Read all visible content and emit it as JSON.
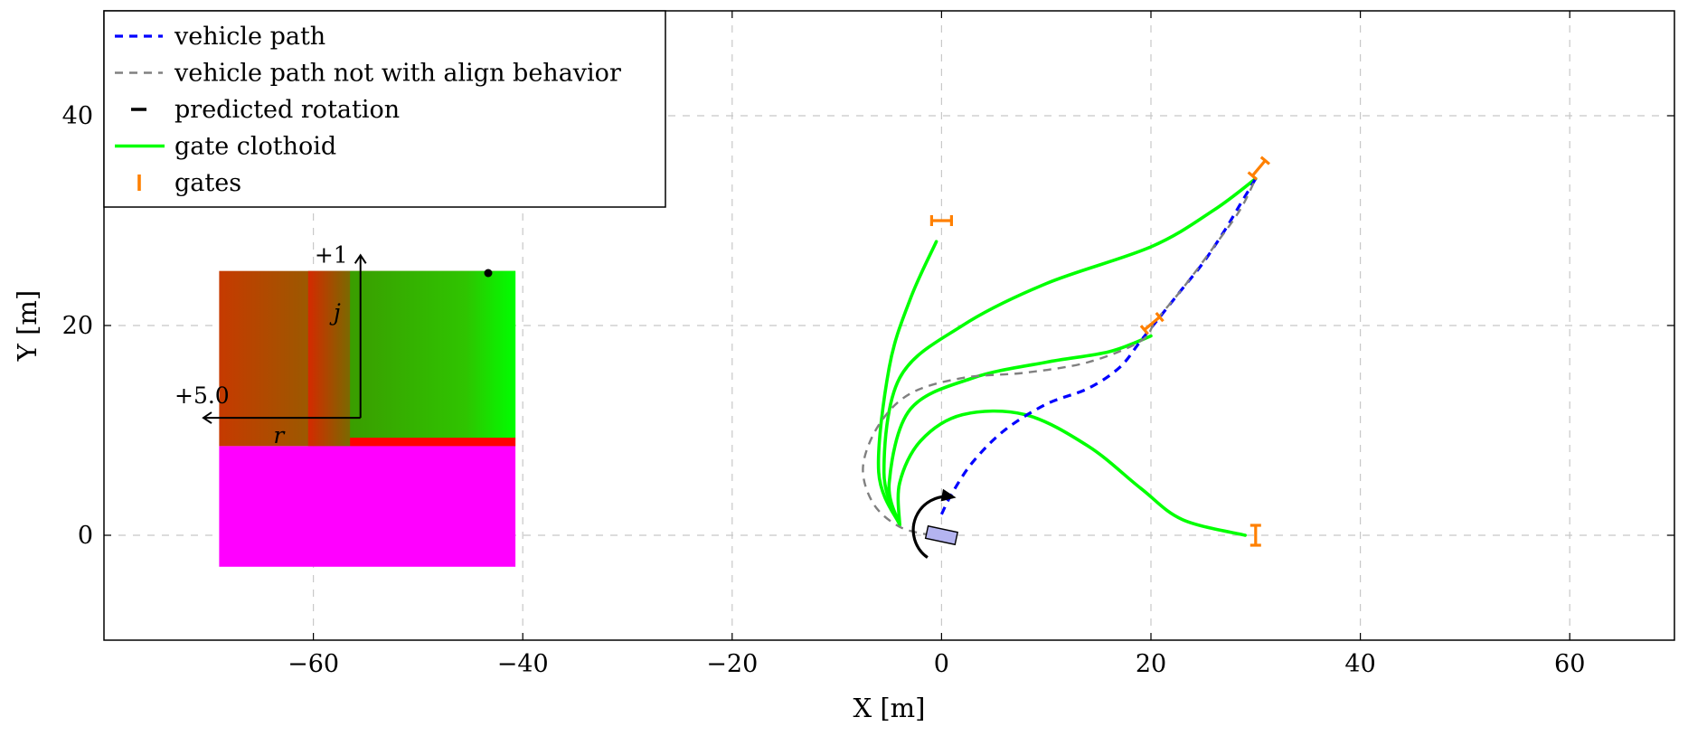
{
  "chart_data": {
    "type": "line",
    "xlabel": "X [m]",
    "ylabel": "Y [m]",
    "xlim": [
      -80,
      70
    ],
    "ylim": [
      -10,
      50
    ],
    "grid": true,
    "legend_position": "top-left",
    "xticks": [
      -60,
      -40,
      -20,
      0,
      20,
      40,
      60
    ],
    "yticks": [
      0,
      20,
      40
    ],
    "colors": {
      "vehicle_path": "#0000ff",
      "align_path": "#808080",
      "rotation": "#000000",
      "clothoid": "#00ff00",
      "gates": "#ff8000",
      "vehicle": "#b4b4f0",
      "inset_magenta": "#ff00ff",
      "inset_red": "#ff0000",
      "inset_green": "#00ff00"
    },
    "legend": [
      {
        "key": "vehicle_path",
        "label": "vehicle path",
        "style": "dashed"
      },
      {
        "key": "align_path",
        "label": "vehicle path not with align behavior",
        "style": "dashed"
      },
      {
        "key": "rotation",
        "label": "predicted rotation",
        "style": "solid"
      },
      {
        "key": "clothoid",
        "label": "gate clothoid",
        "style": "solid"
      },
      {
        "key": "gates",
        "label": "gates",
        "style": "marker"
      }
    ],
    "series": [
      {
        "key": "vehicle_path",
        "style": "dashed",
        "points": [
          [
            0,
            2
          ],
          [
            1,
            4
          ],
          [
            3,
            7
          ],
          [
            6,
            10
          ],
          [
            10,
            12.5
          ],
          [
            14,
            14
          ],
          [
            17,
            16
          ],
          [
            19,
            18.5
          ],
          [
            21,
            21
          ],
          [
            23,
            23.5
          ],
          [
            25,
            26
          ],
          [
            27,
            29
          ],
          [
            28.5,
            31.5
          ],
          [
            30,
            34
          ]
        ]
      },
      {
        "key": "align_path",
        "style": "dashed",
        "points": [
          [
            -1,
            0
          ],
          [
            -4,
            0.8
          ],
          [
            -6.5,
            3
          ],
          [
            -7.5,
            6.5
          ],
          [
            -6,
            10.5
          ],
          [
            -3,
            13.5
          ],
          [
            2,
            15
          ],
          [
            8,
            15.5
          ],
          [
            14,
            16.5
          ],
          [
            19,
            18.5
          ],
          [
            20.5,
            20.5
          ],
          [
            23,
            23.5
          ],
          [
            26,
            27.5
          ],
          [
            28.5,
            31
          ],
          [
            30,
            34
          ]
        ]
      },
      {
        "key": "clothoid",
        "name": "gate clothoid",
        "style": "solid",
        "points": [
          [
            -4,
            1
          ],
          [
            -6,
            6
          ],
          [
            -5,
            16
          ],
          [
            -3,
            22.5
          ],
          [
            -0.5,
            28
          ]
        ]
      },
      {
        "key": "clothoid",
        "style": "solid",
        "points": [
          [
            -4,
            1
          ],
          [
            -5.5,
            6
          ],
          [
            -4,
            15
          ],
          [
            2,
            20
          ],
          [
            10,
            24
          ],
          [
            20,
            27.5
          ],
          [
            26,
            31
          ],
          [
            30,
            34
          ]
        ]
      },
      {
        "key": "clothoid",
        "style": "solid",
        "points": [
          [
            -4,
            1
          ],
          [
            -5,
            5
          ],
          [
            -3,
            12
          ],
          [
            3,
            15
          ],
          [
            10,
            16.5
          ],
          [
            16,
            17.5
          ],
          [
            20,
            19
          ]
        ]
      },
      {
        "key": "clothoid",
        "style": "solid",
        "points": [
          [
            -4,
            1
          ],
          [
            -4,
            5
          ],
          [
            -2,
            9
          ],
          [
            2,
            11.5
          ],
          [
            8,
            11.5
          ],
          [
            14,
            8.5
          ],
          [
            19,
            4.5
          ],
          [
            23,
            1.5
          ],
          [
            29,
            0
          ]
        ]
      }
    ],
    "gates": [
      {
        "x": 0,
        "y": 30,
        "angle": 0
      },
      {
        "x": 30.3,
        "y": 35,
        "angle": -50
      },
      {
        "x": 20.1,
        "y": 20.2,
        "angle": -40
      },
      {
        "x": 30,
        "y": 0,
        "angle": 90
      }
    ],
    "vehicle": {
      "x": 0,
      "y": 0,
      "angle": -12
    },
    "rotation_arc": {
      "cx": 0.5,
      "cy": 0.5,
      "r": 3.2,
      "start_deg": 80,
      "end_deg": 235
    },
    "inset": {
      "x_range": [
        -69,
        -40.7
      ],
      "y_range": [
        -3,
        25.2
      ],
      "magenta_top": 8.5,
      "red_band_top": 9.3,
      "stripe1": [
        -60.5,
        -56.5
      ],
      "dot": [
        -43.3,
        25
      ],
      "axes_origin": [
        -55.5,
        11.2
      ],
      "up_arrow_to": 26.7,
      "left_arrow_to": -70.5,
      "labels": {
        "up": "+1",
        "left": "+5.0",
        "j": "j",
        "r": "r"
      }
    }
  }
}
